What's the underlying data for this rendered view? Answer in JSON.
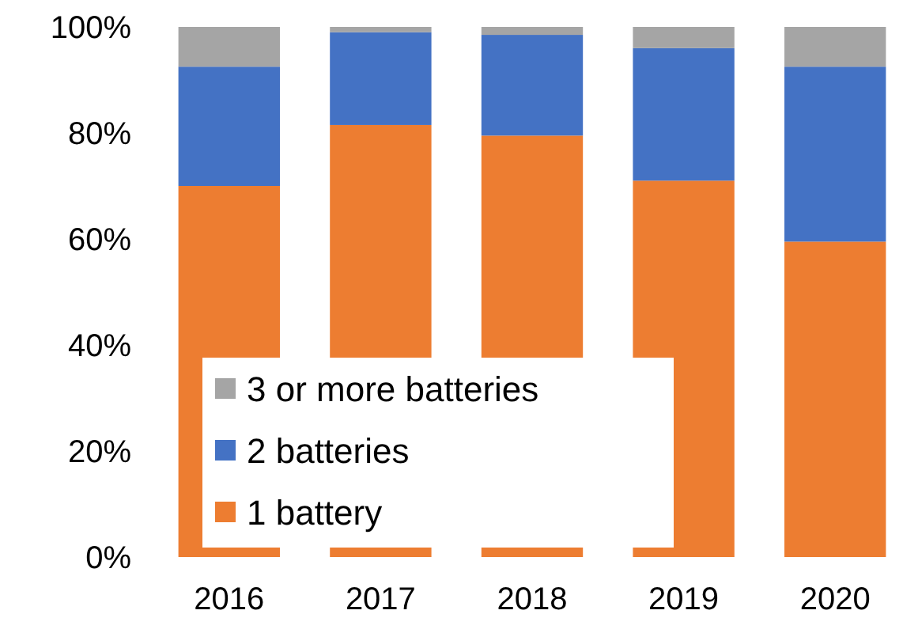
{
  "chart_data": {
    "type": "bar",
    "stacked": true,
    "categories": [
      "2016",
      "2017",
      "2018",
      "2019",
      "2020"
    ],
    "series": [
      {
        "name": "1 battery",
        "color": "#ed7d31",
        "values": [
          70,
          81.5,
          79.5,
          71,
          59.5
        ]
      },
      {
        "name": "2 batteries",
        "color": "#4472c4",
        "values": [
          22.5,
          17.5,
          19,
          25,
          33
        ]
      },
      {
        "name": "3 or more batteries",
        "color": "#a5a5a5",
        "values": [
          7.5,
          1,
          1.5,
          4,
          7.5
        ]
      }
    ],
    "ylim": [
      0,
      100
    ],
    "yticks": [
      {
        "value": 0,
        "label": "0%"
      },
      {
        "value": 20,
        "label": "20%"
      },
      {
        "value": 40,
        "label": "40%"
      },
      {
        "value": 60,
        "label": "60%"
      },
      {
        "value": 80,
        "label": "80%"
      },
      {
        "value": 100,
        "label": "100%"
      }
    ],
    "legend": "bottom left"
  }
}
